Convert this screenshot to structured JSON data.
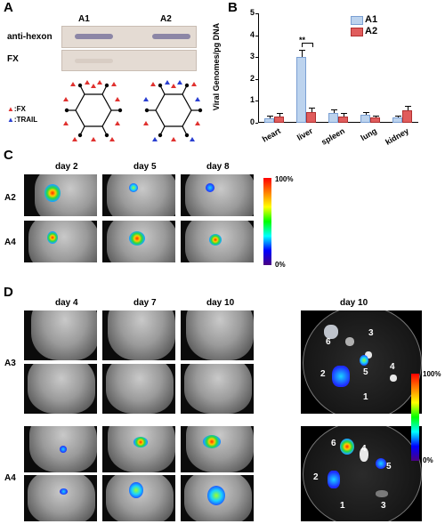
{
  "panel_labels": {
    "a": "A",
    "b": "B",
    "c": "C",
    "d": "D"
  },
  "panel_a": {
    "columns": [
      "A1",
      "A2"
    ],
    "row_labels": [
      "anti-hexon",
      "FX"
    ],
    "legend": [
      {
        "marker": "▲",
        "color": "#e0312f",
        "label": ":FX"
      },
      {
        "marker": "▲",
        "color": "#2a3fd1",
        "label": ":TRAIL"
      }
    ]
  },
  "chart_data": {
    "type": "bar",
    "categories": [
      "heart",
      "liver",
      "spleen",
      "lung",
      "kidney"
    ],
    "series": [
      {
        "name": "A1",
        "values": [
          0.2,
          3.0,
          0.45,
          0.35,
          0.25
        ],
        "errors": [
          0.1,
          0.3,
          0.1,
          0.08,
          0.05
        ]
      },
      {
        "name": "A2",
        "values": [
          0.3,
          0.5,
          0.3,
          0.25,
          0.55
        ],
        "errors": [
          0.1,
          0.15,
          0.1,
          0.05,
          0.2
        ]
      }
    ],
    "ylabel": "Viral Genomes/pg DNA",
    "ylim": [
      0,
      5
    ],
    "yticks": [
      "0",
      "1",
      "2",
      "3",
      "4",
      "5"
    ],
    "annotation": "**",
    "colors": {
      "A1": "#bcd3ee",
      "A2": "#e05c5c"
    },
    "legend_position": "top-right"
  },
  "panel_c": {
    "days": [
      "day 2",
      "day 5",
      "day 8"
    ],
    "rows": [
      "A2",
      "A4"
    ],
    "colorbar": {
      "max": "100%",
      "min": "0%"
    }
  },
  "panel_d": {
    "days": [
      "day 4",
      "day 7",
      "day 10"
    ],
    "rows": [
      "A3",
      "A4"
    ],
    "dish_title": "day 10",
    "dish1_numbers": [
      "6",
      "3",
      "2",
      "5",
      "4",
      "1"
    ],
    "dish2_numbers": [
      "6",
      "4",
      "5",
      "2",
      "1",
      "3"
    ],
    "colorbar": {
      "max": "100%",
      "min": "0%"
    }
  }
}
